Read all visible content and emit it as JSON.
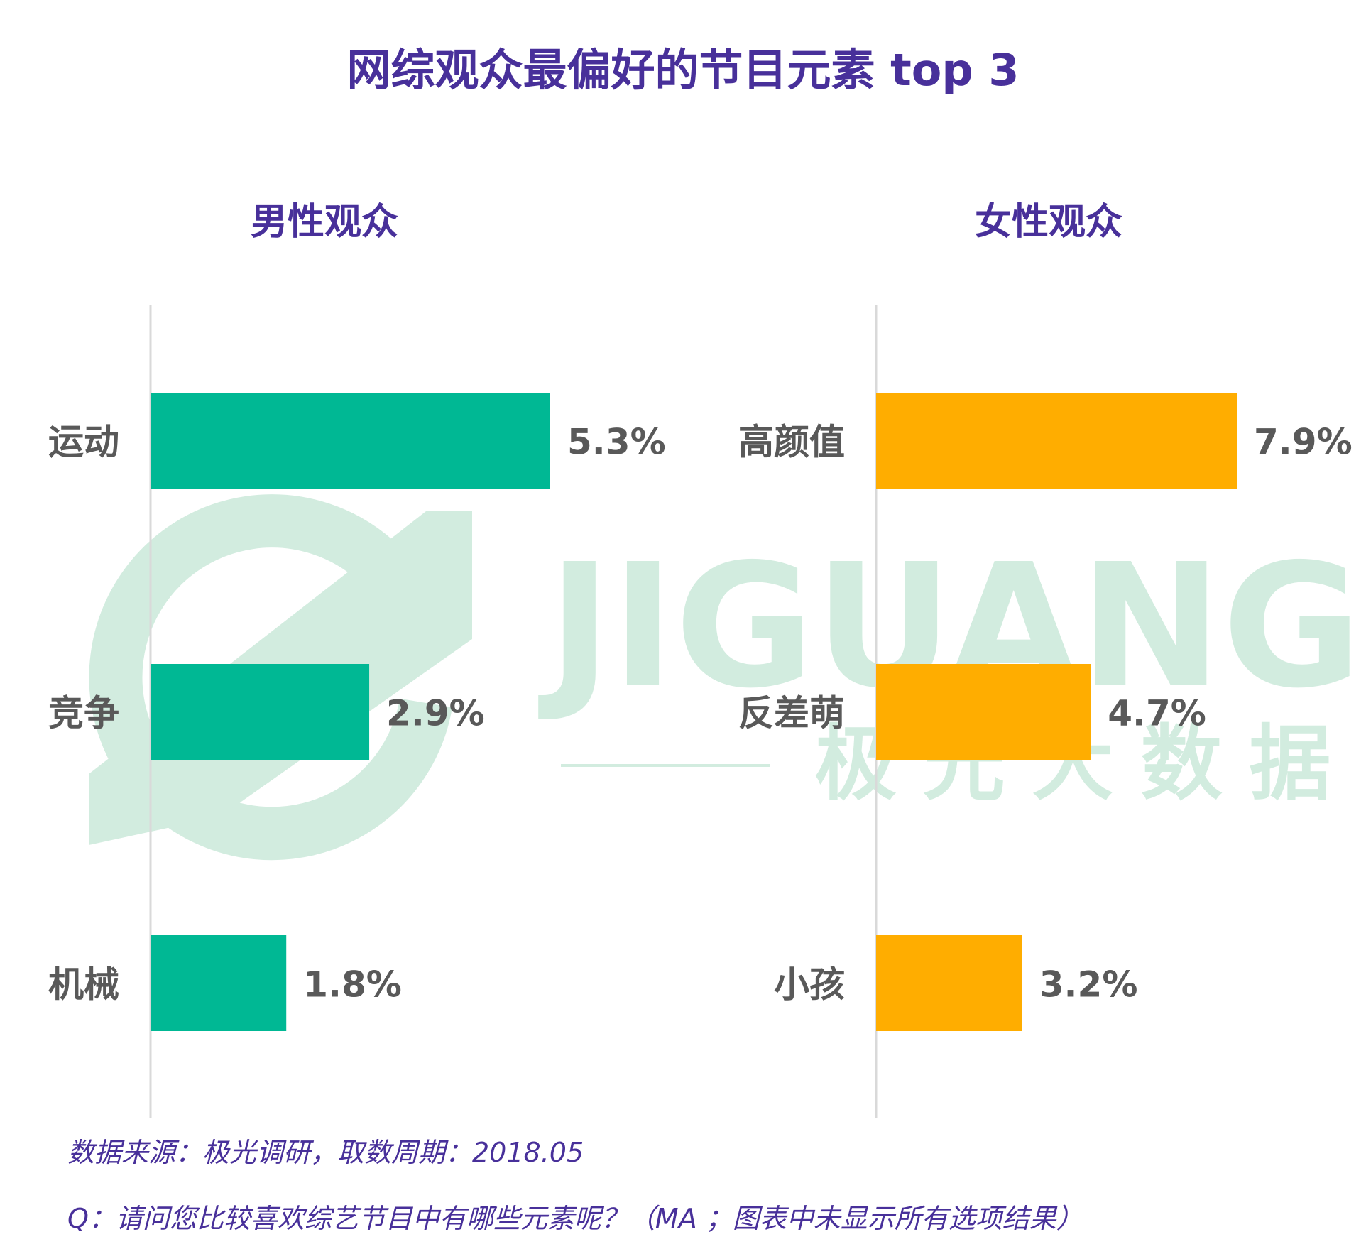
{
  "title": "网综观众最偏好的节目元素 top 3",
  "watermark": {
    "latin": "JIGUANG",
    "cjk": "极光大数据"
  },
  "colors": {
    "title": "#48309a",
    "male_bar": "#00b894",
    "female_bar": "#ffad00",
    "label": "#595959",
    "axis": "#d9d9d9",
    "watermark": "#d2ecdf"
  },
  "footnotes": {
    "source": "数据来源：极光调研，取数周期：2018.05",
    "question": "Q：请问您比较喜欢综艺节目中有哪些元素呢？（MA ；图表中未显示所有选项结果）"
  },
  "chart_data": [
    {
      "type": "bar",
      "orientation": "horizontal",
      "title": "男性观众",
      "categories": [
        "运动",
        "竞争",
        "机械"
      ],
      "values": [
        5.3,
        2.9,
        1.8
      ],
      "value_labels": [
        "5.3%",
        "2.9%",
        "1.8%"
      ],
      "unit": "%",
      "xlim": [
        0,
        5.3
      ],
      "color": "#00b894",
      "grid": false,
      "legend": "none"
    },
    {
      "type": "bar",
      "orientation": "horizontal",
      "title": "女性观众",
      "categories": [
        "高颜值",
        "反差萌",
        "小孩"
      ],
      "values": [
        7.9,
        4.7,
        3.2
      ],
      "value_labels": [
        "7.9%",
        "4.7%",
        "3.2%"
      ],
      "unit": "%",
      "xlim": [
        0,
        7.9
      ],
      "color": "#ffad00",
      "grid": false,
      "legend": "none"
    }
  ]
}
